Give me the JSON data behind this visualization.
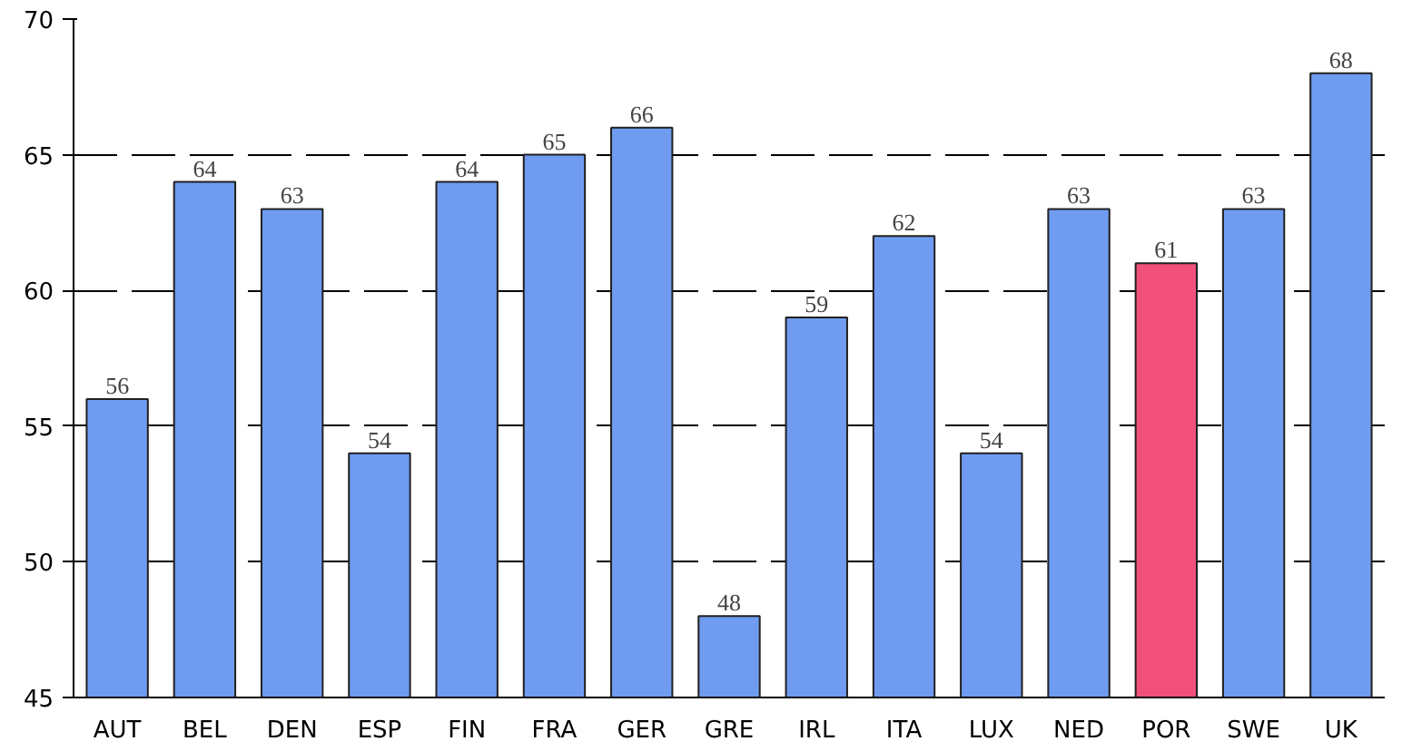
{
  "chart_data": {
    "type": "bar",
    "categories": [
      "AUT",
      "BEL",
      "DEN",
      "ESP",
      "FIN",
      "FRA",
      "GER",
      "GRE",
      "IRL",
      "ITA",
      "LUX",
      "NED",
      "POR",
      "SWE",
      "UK"
    ],
    "values": [
      56,
      64,
      63,
      54,
      64,
      65,
      66,
      48,
      59,
      62,
      54,
      63,
      61,
      63,
      68
    ],
    "colors": [
      "#6f9cf0",
      "#6f9cf0",
      "#6f9cf0",
      "#6f9cf0",
      "#6f9cf0",
      "#6f9cf0",
      "#6f9cf0",
      "#6f9cf0",
      "#6f9cf0",
      "#6f9cf0",
      "#6f9cf0",
      "#6f9cf0",
      "#f0507a",
      "#6f9cf0",
      "#6f9cf0"
    ],
    "ylim": [
      45,
      70
    ],
    "yticks": [
      45,
      50,
      55,
      60,
      65,
      70
    ],
    "grid": "y",
    "data_labels": true
  }
}
